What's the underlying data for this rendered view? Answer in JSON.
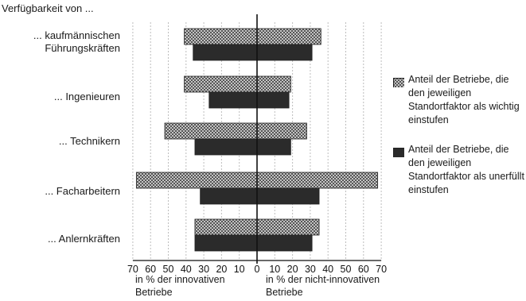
{
  "chart_data": {
    "type": "bar",
    "orientation": "horizontal-butterfly",
    "title": "Verfügbarkeit von ...",
    "categories": [
      "... kaufmännischen Führungskräften",
      "... Ingenieuren",
      "... Technikern",
      "... Facharbeitern",
      "... Anlernkräften"
    ],
    "series": [
      {
        "name": "Anteil der Betriebe, die den jeweiligen Standortfaktor als wichtig einstufen",
        "pattern": "checkered",
        "innovative": [
          41,
          41,
          52,
          68,
          35
        ],
        "non_innovative": [
          36,
          19,
          28,
          68,
          35
        ]
      },
      {
        "name": "Anteil der Betriebe, die den jeweiligen Standortfaktor als unerfüllt einstufen",
        "pattern": "solid",
        "innovative": [
          36,
          27,
          35,
          32,
          35
        ],
        "non_innovative": [
          31,
          18,
          19,
          35,
          31
        ]
      }
    ],
    "x_ticks": [
      "70",
      "60",
      "50",
      "40",
      "30",
      "20",
      "10",
      "0",
      "10",
      "20",
      "30",
      "40",
      "50",
      "60",
      "70"
    ],
    "left_axis_label": "in % der innovativen Betriebe",
    "right_axis_label": "in % der nicht-innovativen Betriebe",
    "xlim": [
      0,
      70
    ],
    "grid": true,
    "legend_position": "right"
  },
  "colors": {
    "solid_bar": "#2b2b2b",
    "checkered_light": "#c4c4c4",
    "checkered_dark": "#555555",
    "grid": "#bdbdbd",
    "axis": "#111111"
  }
}
